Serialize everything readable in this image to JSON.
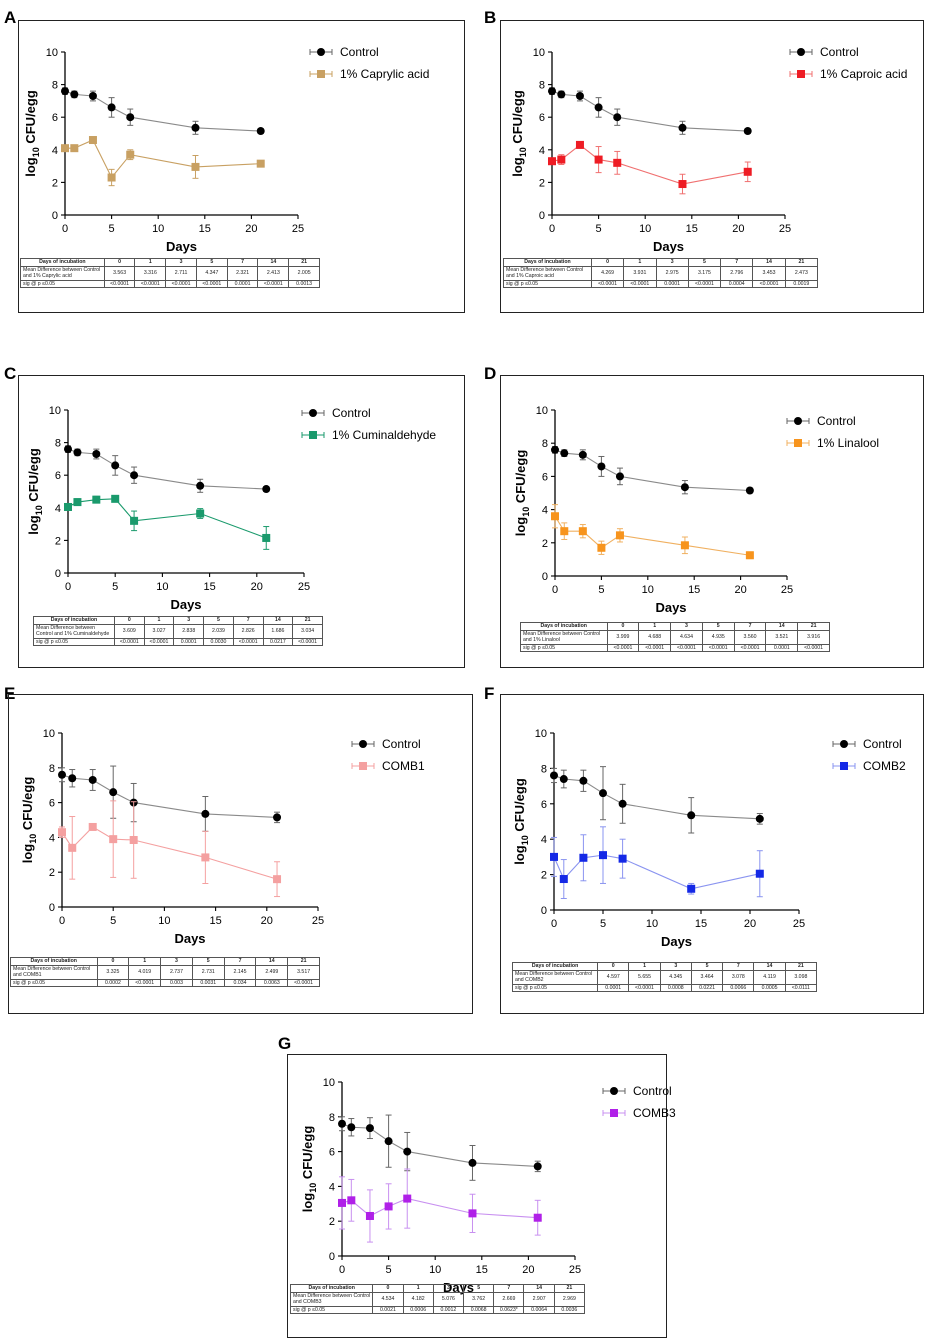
{
  "chart_data": [
    {
      "panel": "A",
      "type": "line",
      "xlabel": "Days",
      "ylabel": "log10 CFU/egg",
      "xlim": [
        0,
        25
      ],
      "ylim": [
        0,
        10
      ],
      "xticks": [
        "0",
        "5",
        "10",
        "15",
        "20",
        "25"
      ],
      "yticks": [
        "0",
        "2",
        "4",
        "6",
        "8",
        "10"
      ],
      "series": [
        {
          "name": "Control",
          "color": "#000000",
          "marker": "diamond",
          "line_color": "#8a8a8a",
          "x": [
            0,
            1,
            3,
            5,
            7,
            14,
            21
          ],
          "y": [
            7.6,
            7.4,
            7.3,
            6.6,
            6.0,
            5.35,
            5.15
          ],
          "err": [
            0.2,
            0.2,
            0.3,
            0.6,
            0.5,
            0.4,
            0.15
          ]
        },
        {
          "name": "1% Caprylic acid",
          "color": "#c8a062",
          "marker": "square",
          "line_color": "#c8a062",
          "x": [
            0,
            1,
            3,
            5,
            7,
            14,
            21
          ],
          "y": [
            4.1,
            4.1,
            4.6,
            2.3,
            3.7,
            2.95,
            3.15
          ],
          "err": [
            0.1,
            0.1,
            0.1,
            0.5,
            0.3,
            0.7,
            0.1
          ]
        }
      ],
      "table": {
        "header": [
          "Days of incubation",
          "0",
          "1",
          "3",
          "5",
          "7",
          "14",
          "21"
        ],
        "rows": [
          {
            "label": "Mean Difference between Control and 1% Caprylic acid",
            "values": [
              "3.563",
              "3.316",
              "2.711",
              "4.347",
              "2.321",
              "2.413",
              "2.005"
            ]
          },
          {
            "label": "sig @ p ≤0.05",
            "values": [
              "<0.0001",
              "<0.0001",
              "<0.0001",
              "<0.0001",
              "0.0001",
              "<0.0001",
              "0.0013"
            ]
          }
        ]
      }
    },
    {
      "panel": "B",
      "type": "line",
      "xlabel": "Days",
      "ylabel": "log10 CFU/egg",
      "xlim": [
        0,
        25
      ],
      "ylim": [
        0,
        10
      ],
      "xticks": [
        "0",
        "5",
        "10",
        "15",
        "20",
        "25"
      ],
      "yticks": [
        "0",
        "2",
        "4",
        "6",
        "8",
        "10"
      ],
      "series": [
        {
          "name": "Control",
          "color": "#000000",
          "marker": "diamond",
          "line_color": "#8a8a8a",
          "x": [
            0,
            1,
            3,
            5,
            7,
            14,
            21
          ],
          "y": [
            7.6,
            7.4,
            7.3,
            6.6,
            6.0,
            5.35,
            5.15
          ],
          "err": [
            0.2,
            0.2,
            0.3,
            0.6,
            0.5,
            0.4,
            0.15
          ]
        },
        {
          "name": "1% Caproic acid",
          "color": "#ee1c24",
          "marker": "square",
          "line_color": "#f07070",
          "x": [
            0,
            1,
            3,
            5,
            7,
            14,
            21
          ],
          "y": [
            3.3,
            3.4,
            4.3,
            3.4,
            3.2,
            1.9,
            2.65
          ],
          "err": [
            0.2,
            0.3,
            0.2,
            0.8,
            0.7,
            0.6,
            0.6
          ]
        }
      ],
      "table": {
        "header": [
          "Days of incubation",
          "0",
          "1",
          "3",
          "5",
          "7",
          "14",
          "21"
        ],
        "rows": [
          {
            "label": "Mean Difference between Control and 1% Caproic acid",
            "values": [
              "4.269",
              "3.931",
              "2.975",
              "3.175",
              "2.796",
              "3.453",
              "2.473"
            ]
          },
          {
            "label": "sig @ p ≤0.05",
            "values": [
              "<0.0001",
              "<0.0001",
              "0.0001",
              "<0.0001",
              "0.0004",
              "<0.0001",
              "0.0019"
            ]
          }
        ]
      }
    },
    {
      "panel": "C",
      "type": "line",
      "xlabel": "Days",
      "ylabel": "log10 CFU/egg",
      "xlim": [
        0,
        25
      ],
      "ylim": [
        0,
        10
      ],
      "xticks": [
        "0",
        "5",
        "10",
        "15",
        "20",
        "25"
      ],
      "yticks": [
        "0",
        "2",
        "4",
        "6",
        "8",
        "10"
      ],
      "series": [
        {
          "name": "Control",
          "color": "#000000",
          "marker": "diamond",
          "line_color": "#8a8a8a",
          "x": [
            0,
            1,
            3,
            5,
            7,
            14,
            21
          ],
          "y": [
            7.6,
            7.4,
            7.3,
            6.6,
            6.0,
            5.35,
            5.15
          ],
          "err": [
            0.2,
            0.2,
            0.3,
            0.6,
            0.5,
            0.4,
            0.15
          ]
        },
        {
          "name": "1% Cuminaldehyde",
          "color": "#1a9a6c",
          "marker": "square",
          "line_color": "#1a9a6c",
          "x": [
            0,
            1,
            3,
            5,
            7,
            14,
            21
          ],
          "y": [
            4.05,
            4.35,
            4.5,
            4.55,
            3.2,
            3.65,
            2.15
          ],
          "err": [
            0.2,
            0.2,
            0.2,
            0.1,
            0.6,
            0.3,
            0.7
          ]
        }
      ],
      "table": {
        "header": [
          "Days of incubation",
          "0",
          "1",
          "3",
          "5",
          "7",
          "14",
          "21"
        ],
        "rows": [
          {
            "label": "Mean Difference between Control and 1% Cuminaldehyde",
            "values": [
              "3.609",
              "3.027",
              "2.838",
              "2.039",
              "2.826",
              "1.686",
              "3.034"
            ]
          },
          {
            "label": "sig @ p ≤0.05",
            "values": [
              "<0.0001",
              "<0.0001",
              "0.0001",
              "0.0030",
              "<0.0001",
              "0.0217",
              "<0.0001"
            ]
          }
        ]
      }
    },
    {
      "panel": "D",
      "type": "line",
      "xlabel": "Days",
      "ylabel": "log10 CFU/egg",
      "xlim": [
        0,
        25
      ],
      "ylim": [
        0,
        10
      ],
      "xticks": [
        "0",
        "5",
        "10",
        "15",
        "20",
        "25"
      ],
      "yticks": [
        "0",
        "2",
        "4",
        "6",
        "8",
        "10"
      ],
      "series": [
        {
          "name": "Control",
          "color": "#000000",
          "marker": "diamond",
          "line_color": "#8a8a8a",
          "x": [
            0,
            1,
            3,
            5,
            7,
            14,
            21
          ],
          "y": [
            7.6,
            7.4,
            7.3,
            6.6,
            6.0,
            5.35,
            5.15
          ],
          "err": [
            0.2,
            0.2,
            0.3,
            0.6,
            0.5,
            0.4,
            0.15
          ]
        },
        {
          "name": "1% Linalool",
          "color": "#f7941d",
          "marker": "square",
          "line_color": "#f0b060",
          "x": [
            0,
            1,
            3,
            5,
            7,
            14,
            21
          ],
          "y": [
            3.6,
            2.7,
            2.7,
            1.7,
            2.45,
            1.85,
            1.25
          ],
          "err": [
            0.7,
            0.5,
            0.4,
            0.4,
            0.4,
            0.5,
            0.2
          ]
        }
      ],
      "table": {
        "header": [
          "Days of incubation",
          "0",
          "1",
          "3",
          "5",
          "7",
          "14",
          "21"
        ],
        "rows": [
          {
            "label": "Mean Difference between Control and 1% Linalool",
            "values": [
              "3.999",
              "4.688",
              "4.634",
              "4.935",
              "3.560",
              "3.521",
              "3.916"
            ]
          },
          {
            "label": "sig @ p ≤0.05",
            "values": [
              "<0.0001",
              "<0.0001",
              "<0.0001",
              "<0.0001",
              "<0.0001",
              "0.0001",
              "<0.0001"
            ]
          }
        ]
      }
    },
    {
      "panel": "E",
      "type": "line",
      "xlabel": "Days",
      "ylabel": "log10 CFU/egg",
      "xlim": [
        0,
        25
      ],
      "ylim": [
        0,
        10
      ],
      "xticks": [
        "0",
        "5",
        "10",
        "15",
        "20",
        "25"
      ],
      "yticks": [
        "0",
        "2",
        "4",
        "6",
        "8",
        "10"
      ],
      "series": [
        {
          "name": "Control",
          "color": "#000000",
          "marker": "diamond",
          "line_color": "#8a8a8a",
          "x": [
            0,
            1,
            3,
            5,
            7,
            14,
            21
          ],
          "y": [
            7.6,
            7.4,
            7.3,
            6.6,
            6.0,
            5.35,
            5.15
          ],
          "err": [
            0.4,
            0.5,
            0.6,
            1.5,
            1.1,
            1.0,
            0.3
          ]
        },
        {
          "name": "COMB1",
          "color": "#f4a0a0",
          "marker": "square",
          "line_color": "#f4a0a0",
          "x": [
            0,
            1,
            3,
            5,
            7,
            14,
            21
          ],
          "y": [
            4.3,
            3.4,
            4.6,
            3.9,
            3.85,
            2.85,
            1.6
          ],
          "err": [
            0.3,
            1.8,
            0.1,
            2.2,
            2.2,
            1.5,
            1.0
          ]
        }
      ],
      "table": {
        "header": [
          "Days of incubation",
          "0",
          "1",
          "3",
          "5",
          "7",
          "14",
          "21"
        ],
        "rows": [
          {
            "label": "Mean Difference between Control and COMB1",
            "values": [
              "3.325",
              "4.019",
              "2.737",
              "2.731",
              "2.145",
              "2.499",
              "3.517"
            ]
          },
          {
            "label": "sig @ p ≤0.05",
            "values": [
              "0.0002",
              "<0.0001",
              "0.003",
              "0.0031",
              "0.034",
              "0.0063",
              "<0.0001"
            ]
          }
        ]
      }
    },
    {
      "panel": "F",
      "type": "line",
      "xlabel": "Days",
      "ylabel": "log10 CFU/egg",
      "xlim": [
        0,
        25
      ],
      "ylim": [
        0,
        10
      ],
      "xticks": [
        "0",
        "5",
        "10",
        "15",
        "20",
        "25"
      ],
      "yticks": [
        "0",
        "2",
        "4",
        "6",
        "8",
        "10"
      ],
      "series": [
        {
          "name": "Control",
          "color": "#000000",
          "marker": "diamond",
          "line_color": "#8a8a8a",
          "x": [
            0,
            1,
            3,
            5,
            7,
            14,
            21
          ],
          "y": [
            7.6,
            7.4,
            7.3,
            6.6,
            6.0,
            5.35,
            5.15
          ],
          "err": [
            0.4,
            0.5,
            0.6,
            1.5,
            1.1,
            1.0,
            0.3
          ]
        },
        {
          "name": "COMB2",
          "color": "#1428e6",
          "marker": "square",
          "line_color": "#8a94f0",
          "x": [
            0,
            1,
            3,
            5,
            7,
            14,
            21
          ],
          "y": [
            3.0,
            1.75,
            2.95,
            3.1,
            2.9,
            1.2,
            2.05
          ],
          "err": [
            1.1,
            1.1,
            1.3,
            1.6,
            1.1,
            0.3,
            1.3
          ]
        }
      ],
      "table": {
        "header": [
          "Days of incubation",
          "0",
          "1",
          "3",
          "5",
          "7",
          "14",
          "21"
        ],
        "rows": [
          {
            "label": "Mean Difference between Control and COMB2",
            "values": [
              "4.597",
              "5.655",
              "4.345",
              "3.464",
              "3.078",
              "4.119",
              "3.098"
            ]
          },
          {
            "label": "sig @ p ≤0.05",
            "values": [
              "0.0001",
              "<0.0001",
              "0.0008",
              "0.0221",
              "0.0066",
              "0.0005",
              "<0.0111"
            ]
          }
        ]
      }
    },
    {
      "panel": "G",
      "type": "line",
      "xlabel": "Days",
      "ylabel": "log10 CFU/egg",
      "xlim": [
        0,
        25
      ],
      "ylim": [
        0,
        10
      ],
      "xticks": [
        "0",
        "5",
        "10",
        "15",
        "20",
        "25"
      ],
      "yticks": [
        "0",
        "2",
        "4",
        "6",
        "8",
        "10"
      ],
      "series": [
        {
          "name": "Control",
          "color": "#000000",
          "marker": "diamond",
          "line_color": "#8a8a8a",
          "x": [
            0,
            1,
            3,
            5,
            7,
            14,
            21
          ],
          "y": [
            7.6,
            7.4,
            7.35,
            6.6,
            6.0,
            5.35,
            5.15
          ],
          "err": [
            0.4,
            0.5,
            0.6,
            1.5,
            1.1,
            1.0,
            0.3
          ]
        },
        {
          "name": "COMB3",
          "color": "#b020e8",
          "marker": "square",
          "line_color": "#c890f0",
          "x": [
            0,
            1,
            3,
            5,
            7,
            14,
            21
          ],
          "y": [
            3.05,
            3.2,
            2.3,
            2.85,
            3.3,
            2.45,
            2.2
          ],
          "err": [
            1.5,
            1.2,
            1.5,
            1.3,
            1.7,
            1.1,
            1.0
          ]
        }
      ],
      "table": {
        "header": [
          "Days of incubation",
          "0",
          "1",
          "3",
          "5",
          "7",
          "14",
          "21"
        ],
        "rows": [
          {
            "label": "Mean Difference between Control and COMB3",
            "values": [
              "4.534",
              "4.182",
              "5.076",
              "3.762",
              "2.669",
              "2.907",
              "2.969"
            ]
          },
          {
            "label": "sig @ p ≤0.05",
            "values": [
              "0.0021",
              "0.0006",
              "0.0012",
              "0.0068",
              "0.0623*",
              "0.0064",
              "0.0036"
            ]
          }
        ]
      }
    }
  ]
}
